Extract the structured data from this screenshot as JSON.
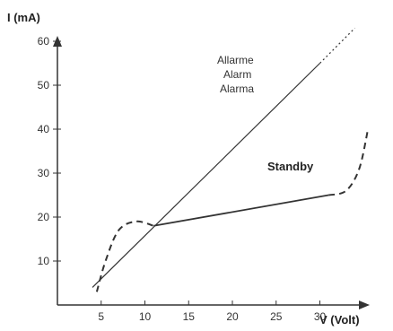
{
  "chart_data": {
    "type": "line",
    "title": "",
    "xlabel": "V (Volt)",
    "ylabel": "I (mA)",
    "xlim": [
      0,
      38
    ],
    "ylim": [
      0,
      65
    ],
    "x_ticks": [
      5,
      10,
      15,
      20,
      25,
      30
    ],
    "y_ticks": [
      10,
      20,
      30,
      40,
      50,
      60
    ],
    "grid": false,
    "colors": {
      "axis": "#333333",
      "line": "#333333"
    },
    "series": [
      {
        "name": "Allarme\nAlarm\nAlarma",
        "label_lines": [
          "Allarme",
          "Alarm",
          "Alarma"
        ],
        "style": "solid-thin",
        "x": [
          4,
          30
        ],
        "y": [
          4,
          55
        ]
      },
      {
        "name": "Allarme (extrapolated)",
        "style": "dotted",
        "x": [
          30,
          34
        ],
        "y": [
          55,
          63
        ]
      },
      {
        "name": "Standby",
        "label_lines": [
          "Standby"
        ],
        "style": "solid-bold",
        "x": [
          11,
          31
        ],
        "y": [
          18,
          25
        ]
      },
      {
        "name": "Standby (low)",
        "style": "dashed",
        "x": [
          4.5,
          5.5,
          7,
          9,
          11
        ],
        "y": [
          3,
          10,
          17,
          19,
          18
        ]
      },
      {
        "name": "Standby (high)",
        "style": "dashed",
        "x": [
          31,
          33,
          34.5,
          35.5
        ],
        "y": [
          25,
          26,
          31,
          40
        ]
      }
    ]
  }
}
